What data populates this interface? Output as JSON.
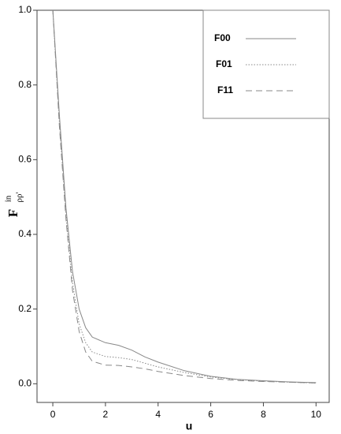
{
  "chart_data": {
    "type": "line",
    "x_label": "u",
    "y_label": "F",
    "y_label_superscript": "in",
    "y_label_subscript": "ρρ'",
    "x": [
      0,
      0.25,
      0.5,
      0.75,
      1,
      1.25,
      1.5,
      2,
      2.5,
      3,
      3.5,
      4,
      5,
      6,
      7,
      8,
      9,
      10
    ],
    "series": [
      {
        "name": "F00",
        "color": "#888888",
        "style": "solid",
        "values": [
          1.0,
          0.72,
          0.47,
          0.3,
          0.2,
          0.15,
          0.125,
          0.11,
          0.103,
          0.09,
          0.072,
          0.058,
          0.035,
          0.02,
          0.012,
          0.008,
          0.005,
          0.003
        ]
      },
      {
        "name": "F01",
        "color": "#888888",
        "style": "dotted",
        "values": [
          1.0,
          0.7,
          0.45,
          0.27,
          0.16,
          0.11,
          0.085,
          0.073,
          0.07,
          0.065,
          0.055,
          0.045,
          0.03,
          0.018,
          0.011,
          0.007,
          0.004,
          0.002
        ]
      },
      {
        "name": "F11",
        "color": "#888888",
        "style": "dashed",
        "values": [
          1.0,
          0.69,
          0.44,
          0.25,
          0.14,
          0.085,
          0.06,
          0.05,
          0.049,
          0.045,
          0.04,
          0.033,
          0.022,
          0.014,
          0.009,
          0.006,
          0.004,
          0.002
        ]
      }
    ],
    "xlim": [
      -0.6,
      10.5
    ],
    "ylim": [
      -0.05,
      1.0
    ],
    "xticks": [
      0,
      2,
      4,
      6,
      8,
      10
    ],
    "yticks": [
      {
        "value": 0,
        "label": "0.0"
      },
      {
        "value": 0.2,
        "label": "0.2"
      },
      {
        "value": 0.4,
        "label": "0.4"
      },
      {
        "value": 0.6,
        "label": "0.6"
      },
      {
        "value": 0.8,
        "label": "0.8"
      },
      {
        "value": 1,
        "label": "1.0"
      }
    ],
    "legend": "upper right"
  }
}
